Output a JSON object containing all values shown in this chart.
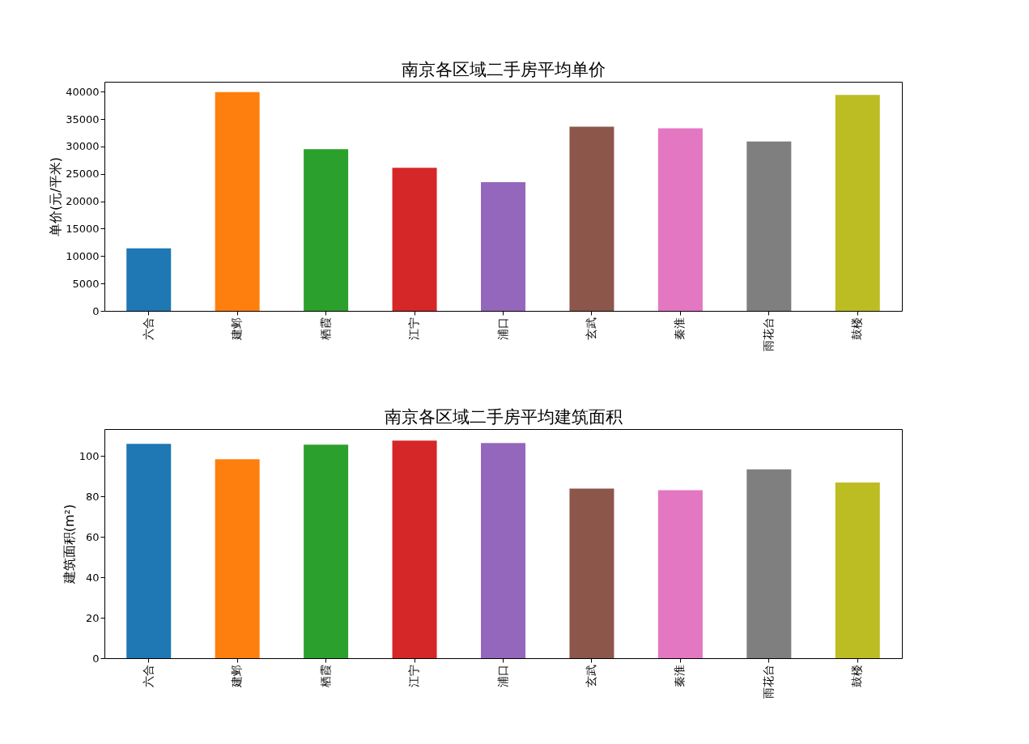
{
  "chart_data": [
    {
      "type": "bar",
      "title": "南京各区域二手房平均单价",
      "ylabel": "单价(元/平米)",
      "categories": [
        "六合",
        "建邺",
        "栖霞",
        "江宁",
        "浦口",
        "玄武",
        "秦淮",
        "雨花台",
        "鼓楼"
      ],
      "values": [
        11400,
        39900,
        29500,
        26100,
        23500,
        33600,
        33300,
        30900,
        39400
      ],
      "colors": [
        "#1f77b4",
        "#ff7f0e",
        "#2ca02c",
        "#d62728",
        "#9467bd",
        "#8c564b",
        "#e377c2",
        "#7f7f7f",
        "#bcbd22"
      ],
      "ylim": [
        0,
        41800
      ],
      "yticks": [
        0,
        5000,
        10000,
        15000,
        20000,
        25000,
        30000,
        35000,
        40000
      ],
      "grid": false
    },
    {
      "type": "bar",
      "title": "南京各区域二手房平均建筑面积",
      "ylabel": "建筑面积(m²)",
      "categories": [
        "六合",
        "建邺",
        "栖霞",
        "江宁",
        "浦口",
        "玄武",
        "秦淮",
        "雨花台",
        "鼓楼"
      ],
      "values": [
        106.1,
        98.5,
        105.7,
        107.7,
        106.5,
        83.9,
        83.1,
        93.5,
        87.0
      ],
      "colors": [
        "#1f77b4",
        "#ff7f0e",
        "#2ca02c",
        "#d62728",
        "#9467bd",
        "#8c564b",
        "#e377c2",
        "#7f7f7f",
        "#bcbd22"
      ],
      "ylim": [
        0,
        113.4
      ],
      "yticks": [
        0,
        20,
        40,
        60,
        80,
        100
      ],
      "grid": false
    }
  ]
}
